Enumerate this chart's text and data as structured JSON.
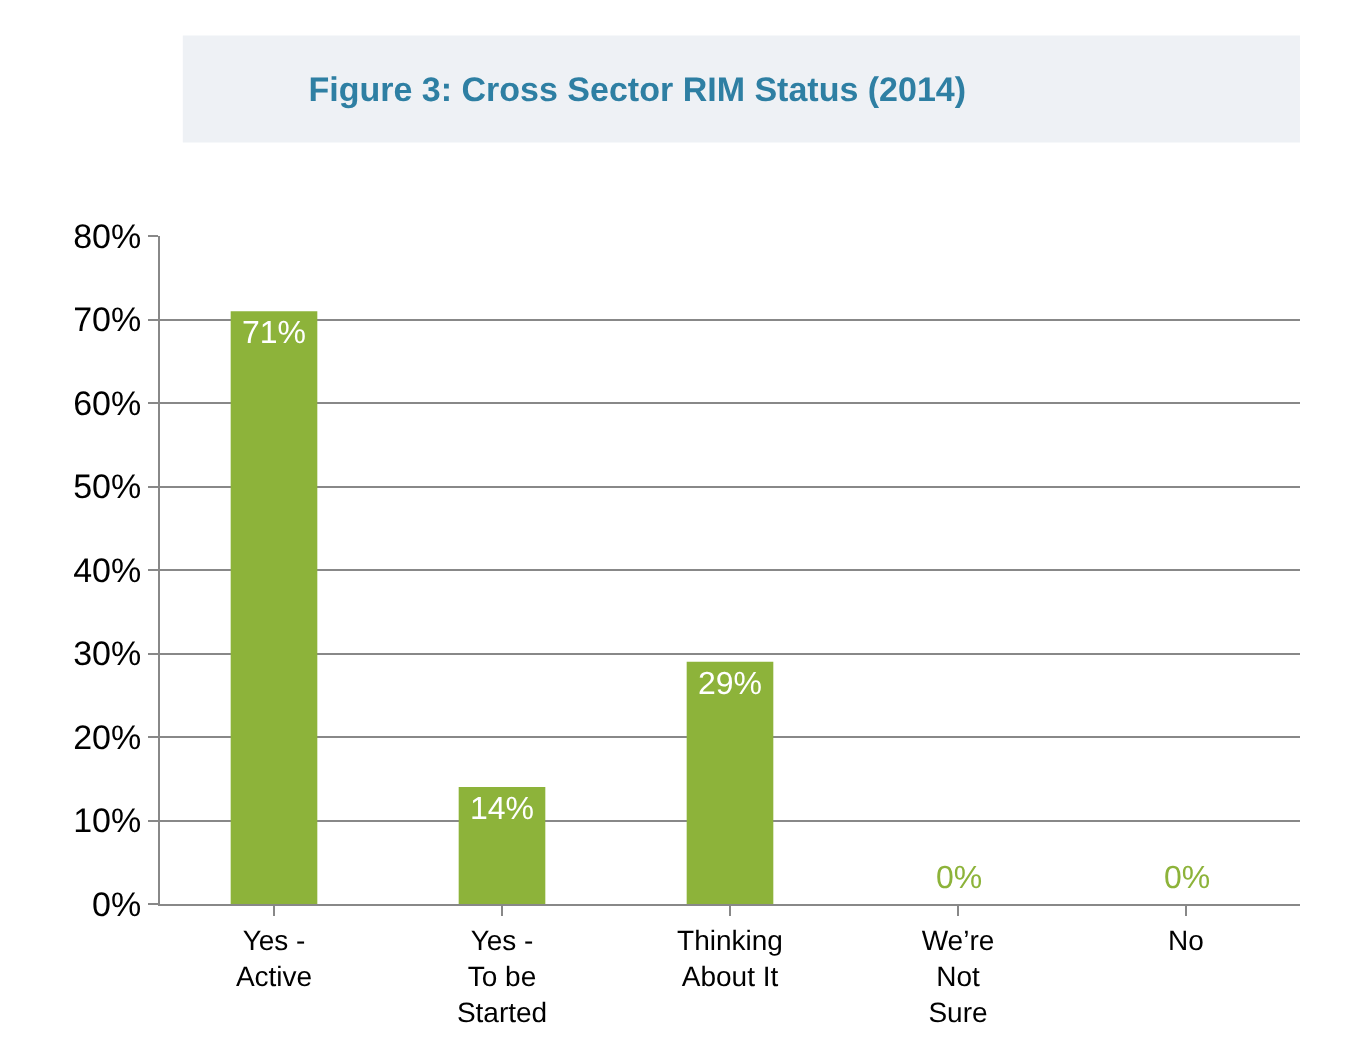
{
  "chart_data": {
    "type": "bar",
    "title": "Figure 3: Cross Sector RIM Status (2014)",
    "categories": [
      "Yes -\nActive",
      "Yes -\nTo be\nStarted",
      "Thinking\nAbout It",
      "We’re\nNot\nSure",
      "No"
    ],
    "values": [
      71,
      14,
      29,
      0,
      0
    ],
    "color": "#8db33a",
    "value_labels": [
      "71%",
      "14%",
      "29%",
      "0%",
      "0%"
    ],
    "ylim": [
      0,
      80
    ],
    "yticks": [
      {
        "value": 0,
        "label": "0%"
      },
      {
        "value": 10,
        "label": "10%"
      },
      {
        "value": 20,
        "label": "20%"
      },
      {
        "value": 30,
        "label": "30%"
      },
      {
        "value": 40,
        "label": "40%"
      },
      {
        "value": 50,
        "label": "50%"
      },
      {
        "value": 60,
        "label": "60%"
      },
      {
        "value": 70,
        "label": "70%"
      },
      {
        "value": 80,
        "label": "80%"
      }
    ],
    "grid": "y"
  }
}
